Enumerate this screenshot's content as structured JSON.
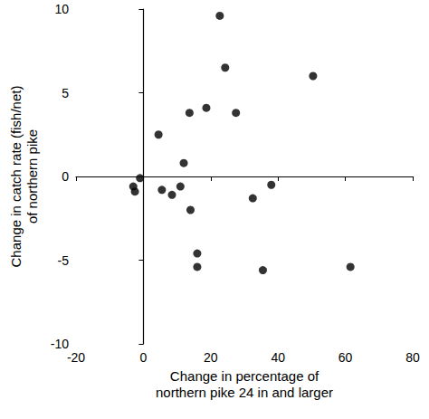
{
  "chart_data": {
    "type": "scatter",
    "x_label": "Change in percentage of\nnorthern pike 24 in and larger",
    "y_label": "Change in catch rate (fish/net)\nof northern pike",
    "x": [
      22.7,
      24.3,
      18.7,
      13.7,
      27.5,
      50.4,
      4.5,
      12,
      -3,
      -2.5,
      -1,
      5.5,
      8.5,
      11,
      14,
      16,
      16,
      32.5,
      38,
      35.5,
      61.5
    ],
    "values": [
      9.6,
      6.5,
      4.1,
      3.8,
      3.8,
      6.0,
      2.5,
      0.8,
      -0.6,
      -0.9,
      -0.1,
      -0.8,
      -1.1,
      -0.6,
      -2,
      -4.6,
      -5.4,
      -1.3,
      -0.5,
      -5.6,
      -5.4
    ],
    "color": "#000000",
    "marker": "circle",
    "xlim": [
      -20,
      80
    ],
    "xticks": [
      -20,
      0,
      20,
      40,
      60,
      80
    ],
    "ylim": [
      -10,
      10
    ],
    "yticks": [
      -10,
      -5,
      0,
      5,
      10
    ],
    "grid": false
  }
}
